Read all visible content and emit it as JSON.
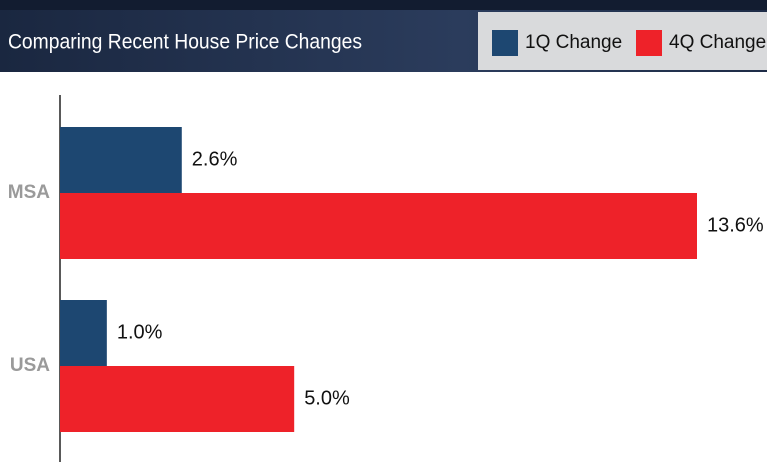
{
  "chart_data": {
    "type": "bar",
    "orientation": "horizontal",
    "title": "Comparing Recent House Price Changes",
    "categories": [
      "MSA",
      "USA"
    ],
    "series": [
      {
        "name": "1Q Change",
        "color": "#1d4771",
        "values": [
          2.6,
          1.0
        ],
        "value_labels": [
          "2.6%",
          "1.0%"
        ]
      },
      {
        "name": "4Q Change",
        "color": "#ee2229",
        "values": [
          13.6,
          5.0
        ],
        "value_labels": [
          "13.6%",
          "5.0%"
        ]
      }
    ]
  }
}
